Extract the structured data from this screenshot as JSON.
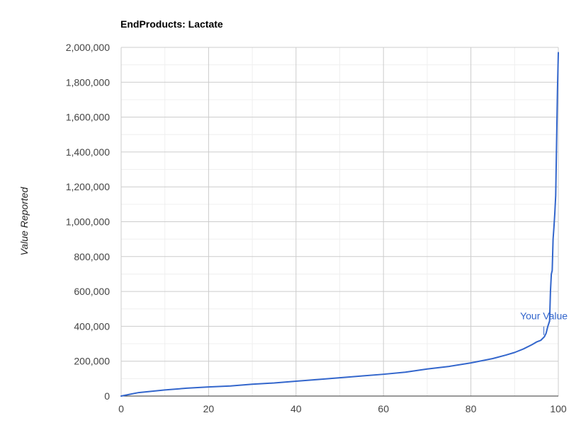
{
  "chart_data": {
    "type": "line",
    "title": "EndProducts: Lactate",
    "xlabel": "",
    "ylabel": "Value Reported",
    "xlim": [
      0,
      100
    ],
    "ylim": [
      0,
      2000000
    ],
    "x_ticks": [
      "0",
      "20",
      "40",
      "60",
      "80",
      "100"
    ],
    "x_tick_values": [
      0,
      20,
      40,
      60,
      80,
      100
    ],
    "y_ticks": [
      "0",
      "200,000",
      "400,000",
      "600,000",
      "800,000",
      "1,000,000",
      "1,200,000",
      "1,400,000",
      "1,600,000",
      "1,800,000",
      "2,000,000"
    ],
    "y_tick_values": [
      0,
      200000,
      400000,
      600000,
      800000,
      1000000,
      1200000,
      1400000,
      1600000,
      1800000,
      2000000
    ],
    "grid": true,
    "series": [
      {
        "color": "#3366cc",
        "x": [
          0,
          2,
          4,
          6,
          8,
          10,
          15,
          20,
          25,
          30,
          35,
          40,
          45,
          50,
          55,
          60,
          65,
          70,
          75,
          80,
          85,
          88,
          90,
          92,
          94,
          95,
          96,
          96.8,
          97.2,
          97.6,
          98,
          98.2,
          98.4,
          98.6,
          98.8,
          99,
          99.2,
          99.4,
          99.6,
          99.8,
          100
        ],
        "y": [
          0,
          10000,
          20000,
          25000,
          30000,
          35000,
          45000,
          52000,
          58000,
          68000,
          75000,
          85000,
          95000,
          105000,
          115000,
          125000,
          137000,
          155000,
          170000,
          190000,
          215000,
          235000,
          250000,
          270000,
          295000,
          310000,
          320000,
          340000,
          360000,
          400000,
          430000,
          600000,
          700000,
          720000,
          900000,
          970000,
          1050000,
          1150000,
          1450000,
          1750000,
          1970000
        ]
      }
    ],
    "annotations": [
      {
        "text": "Your Value",
        "x": 97.5,
        "y": 350000,
        "color": "#3366cc"
      }
    ]
  }
}
